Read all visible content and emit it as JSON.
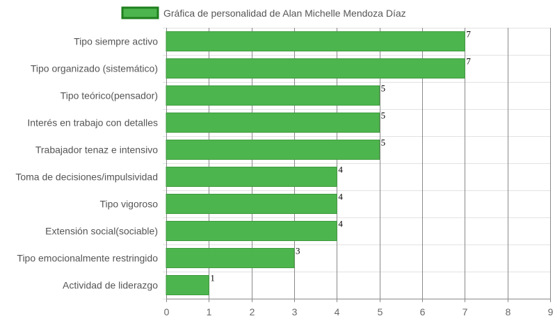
{
  "chart_data": {
    "type": "bar",
    "orientation": "horizontal",
    "title": "",
    "legend": {
      "position": "top",
      "entries": [
        "Gráfica de personalidad de Alan Michelle Mendoza Díaz"
      ]
    },
    "series": [
      {
        "name": "Gráfica de personalidad de Alan Michelle Mendoza Díaz",
        "values": [
          7,
          7,
          5,
          5,
          5,
          4,
          4,
          4,
          3,
          1
        ]
      }
    ],
    "categories": [
      "Tipo siempre activo",
      "Tipo organizado (sistemático)",
      "Tipo teórico(pensador)",
      "Interés en trabajo con detalles",
      "Trabajador tenaz e intensivo",
      "Toma de decisiones/impulsividad",
      "Tipo vigoroso",
      "Extensión social(sociable)",
      "Tipo emocionalmente restringido",
      "Actividad de liderazgo"
    ],
    "xlim": [
      0,
      9
    ],
    "x_ticks": [
      "0",
      "1",
      "2",
      "3",
      "4",
      "5",
      "6",
      "7",
      "8",
      "9"
    ],
    "data_labels": [
      "7",
      "7",
      "5",
      "5",
      "5",
      "4",
      "4",
      "4",
      "3",
      "1"
    ],
    "grid": true,
    "xlabel": "",
    "ylabel": "",
    "colors": {
      "bar_fill": "#4db54d",
      "bar_stroke": "#3e9a3e",
      "legend_fill": "#4db54d",
      "legend_stroke": "#1e7f1e",
      "grid_major": "#888888",
      "grid_minor": "#e2e2e2"
    }
  }
}
